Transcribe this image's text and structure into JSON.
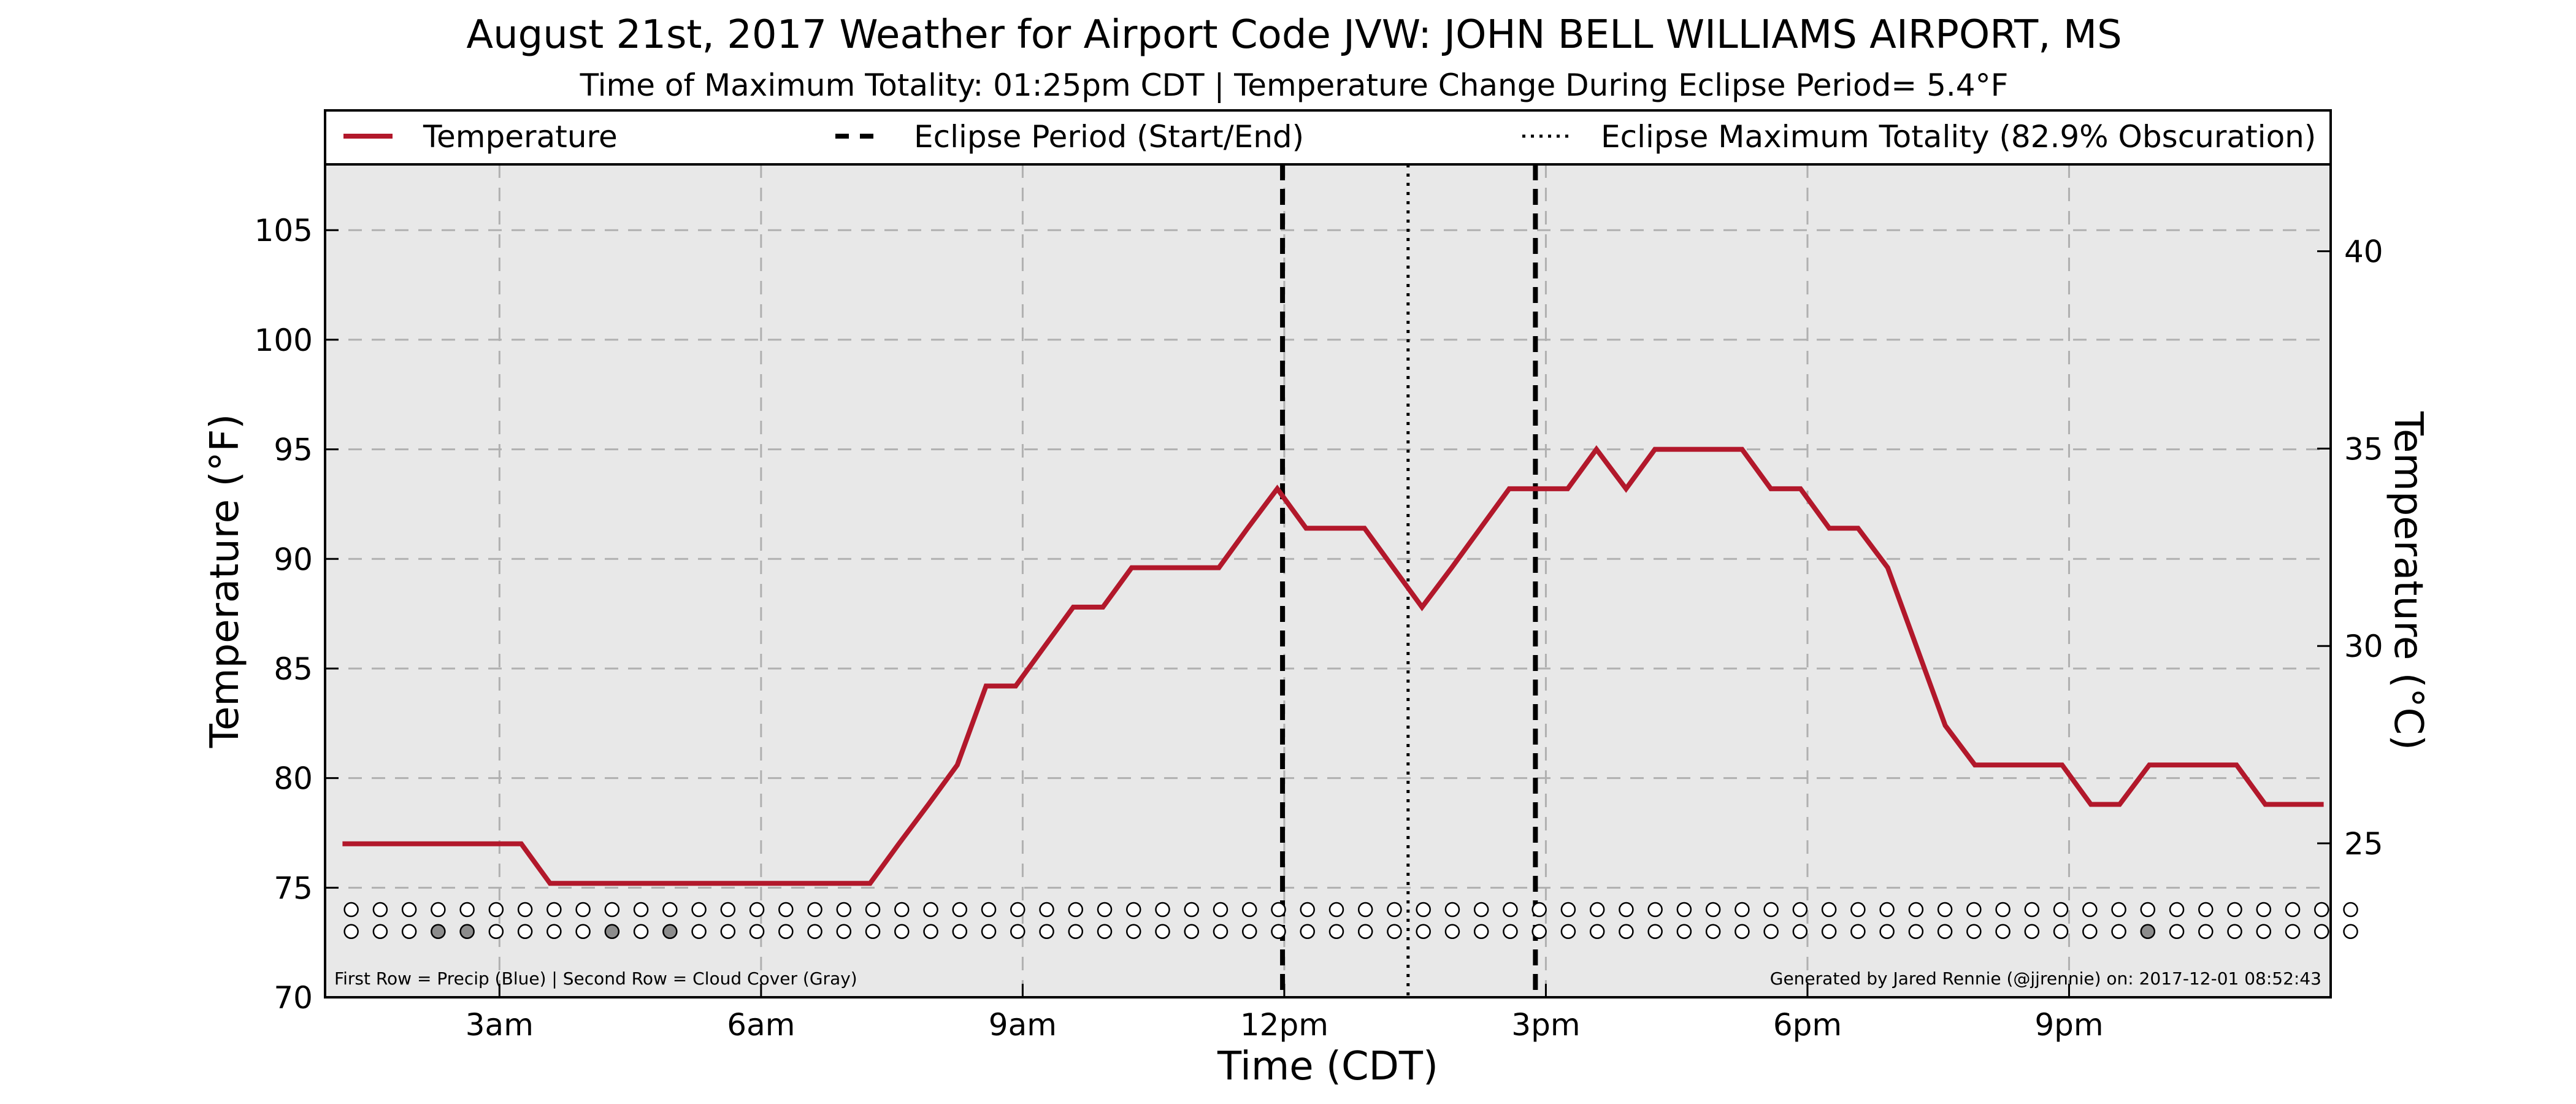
{
  "chart_data": {
    "type": "line",
    "title": "August 21st, 2017 Weather for Airport Code JVW: JOHN BELL WILLIAMS AIRPORT, MS",
    "subtitle": "Time of Maximum Totality: 01:25pm CDT | Temperature Change During Eclipse Period= 5.4°F",
    "xlabel": "Time (CDT)",
    "ylabel": "Temperature (°F)",
    "ylabel_right": "Temperature (°C)",
    "xlim": [
      1.0,
      24.0
    ],
    "ylim": [
      70,
      108
    ],
    "ylim_right_c": [
      21.1,
      42.2
    ],
    "x_ticks": [
      {
        "x": 3,
        "label": "3am"
      },
      {
        "x": 6,
        "label": "6am"
      },
      {
        "x": 9,
        "label": "9am"
      },
      {
        "x": 12,
        "label": "12pm"
      },
      {
        "x": 15,
        "label": "3pm"
      },
      {
        "x": 18,
        "label": "6pm"
      },
      {
        "x": 21,
        "label": "9pm"
      }
    ],
    "y_ticks": [
      70,
      75,
      80,
      85,
      90,
      95,
      100,
      105
    ],
    "y_ticks_right": [
      25,
      30,
      35,
      40
    ],
    "grid": true,
    "legend": {
      "placement": "top",
      "entries": [
        {
          "label": "Temperature",
          "style": "solid"
        },
        {
          "label": "Eclipse Period (Start/End)",
          "style": "dashed"
        },
        {
          "label": "Eclipse Maximum Totality (82.9% Obscuration)",
          "style": "dotted"
        }
      ]
    },
    "series": [
      {
        "name": "Temperature",
        "color": "#b2182b",
        "points": [
          [
            1.2,
            77.0
          ],
          [
            1.58,
            77.0
          ],
          [
            1.92,
            77.0
          ],
          [
            2.25,
            77.0
          ],
          [
            2.58,
            77.0
          ],
          [
            2.92,
            77.0
          ],
          [
            3.25,
            77.0
          ],
          [
            3.58,
            75.2
          ],
          [
            3.92,
            75.2
          ],
          [
            4.25,
            75.2
          ],
          [
            4.58,
            75.2
          ],
          [
            4.92,
            75.2
          ],
          [
            5.25,
            75.2
          ],
          [
            5.58,
            75.2
          ],
          [
            5.92,
            75.2
          ],
          [
            6.25,
            75.2
          ],
          [
            6.58,
            75.2
          ],
          [
            6.92,
            75.2
          ],
          [
            7.25,
            75.2
          ],
          [
            7.58,
            77.0
          ],
          [
            7.92,
            78.8
          ],
          [
            8.25,
            80.6
          ],
          [
            8.58,
            84.2
          ],
          [
            8.92,
            84.2
          ],
          [
            9.25,
            86.0
          ],
          [
            9.58,
            87.8
          ],
          [
            9.92,
            87.8
          ],
          [
            10.25,
            89.6
          ],
          [
            10.58,
            89.6
          ],
          [
            10.92,
            89.6
          ],
          [
            11.25,
            89.6
          ],
          [
            11.58,
            91.4
          ],
          [
            11.92,
            93.2
          ],
          [
            12.25,
            91.4
          ],
          [
            12.58,
            91.4
          ],
          [
            12.92,
            91.4
          ],
          [
            13.25,
            89.6
          ],
          [
            13.58,
            87.8
          ],
          [
            13.92,
            89.6
          ],
          [
            14.25,
            91.4
          ],
          [
            14.58,
            93.2
          ],
          [
            14.92,
            93.2
          ],
          [
            15.25,
            93.2
          ],
          [
            15.58,
            95.0
          ],
          [
            15.92,
            93.2
          ],
          [
            16.25,
            95.0
          ],
          [
            16.58,
            95.0
          ],
          [
            16.92,
            95.0
          ],
          [
            17.25,
            95.0
          ],
          [
            17.58,
            93.2
          ],
          [
            17.92,
            93.2
          ],
          [
            18.25,
            91.4
          ],
          [
            18.58,
            91.4
          ],
          [
            18.92,
            89.6
          ],
          [
            19.25,
            86.0
          ],
          [
            19.58,
            82.4
          ],
          [
            19.92,
            80.6
          ],
          [
            20.25,
            80.6
          ],
          [
            20.58,
            80.6
          ],
          [
            20.92,
            80.6
          ],
          [
            21.25,
            78.8
          ],
          [
            21.58,
            78.8
          ],
          [
            21.92,
            80.6
          ],
          [
            22.25,
            80.6
          ],
          [
            22.58,
            80.6
          ],
          [
            22.92,
            80.6
          ],
          [
            23.25,
            78.8
          ],
          [
            23.58,
            78.8
          ],
          [
            23.92,
            78.8
          ]
        ]
      }
    ],
    "eclipse_start": 11.98,
    "eclipse_end": 14.88,
    "eclipse_max": 13.42,
    "precip_row_y": 74.0,
    "cloud_row_y": 73.0,
    "markers_x_start": 1.3,
    "markers_x_step": 0.3323,
    "markers_count": 70,
    "cloud_cover_gray_indices": [
      3,
      4,
      9,
      11,
      62
    ],
    "footnote_left": "First Row = Precip (Blue) | Second Row = Cloud Cover (Gray)",
    "footnote_right": "Generated by Jared Rennie (@jjrennie) on: 2017-12-01 08:52:43",
    "colors": {
      "plot_bg": "#e8e8e8",
      "line": "#b2182b",
      "cloud_gray": "#8c8c8c",
      "grid": "#b0b0b0"
    }
  }
}
